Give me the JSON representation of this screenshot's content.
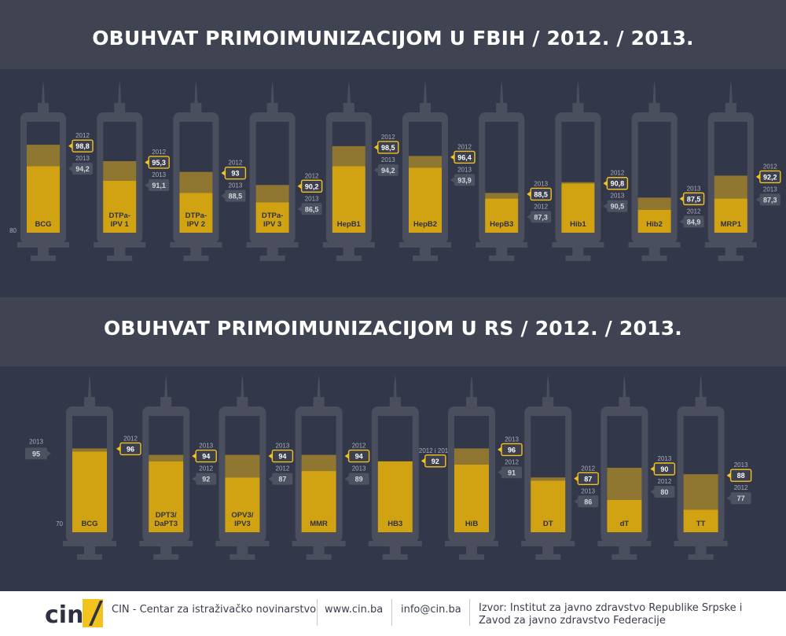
{
  "chart_data": [
    {
      "type": "bar",
      "title": "OBUHVAT PRIMOIMUNIZACIJOM U FBIH / 2012. / 2013.",
      "baseline": "80",
      "ylim": [
        80,
        100
      ],
      "categories": [
        "BCG",
        "DTPa-IPV 1",
        "DTPa-IPV 2",
        "DTPa-IPV 3",
        "HepB1",
        "HepB2",
        "HepB3",
        "Hib1",
        "Hib2",
        "MRP1"
      ],
      "label_lines": [
        [
          "BCG"
        ],
        [
          "DTPa-",
          "IPV 1"
        ],
        [
          "DTPa-",
          "IPV 2"
        ],
        [
          "DTPa-",
          "IPV 3"
        ],
        [
          "HepB1"
        ],
        [
          "HepB2"
        ],
        [
          "HepB3"
        ],
        [
          "Hib1"
        ],
        [
          "Hib2"
        ],
        [
          "MRP1"
        ]
      ],
      "series": [
        {
          "name": "2012",
          "values": [
            98.8,
            95.3,
            93,
            90.2,
            98.5,
            96.4,
            87.3,
            90.8,
            84.9,
            92.2
          ],
          "labels": [
            "98,8",
            "95,3",
            "93",
            "90,2",
            "98,5",
            "96,4",
            "87,3",
            "90,8",
            "84,9",
            "92,2"
          ]
        },
        {
          "name": "2013",
          "values": [
            94.2,
            91.1,
            88.5,
            86.5,
            94.2,
            93.9,
            88.5,
            90.5,
            87.5,
            87.3
          ],
          "labels": [
            "94,2",
            "91,1",
            "88,5",
            "86,5",
            "94,2",
            "93,9",
            "88,5",
            "90,5",
            "87,5",
            "87,3"
          ]
        }
      ]
    },
    {
      "type": "bar",
      "title": "OBUHVAT PRIMOIMUNIZACIJOM U RS / 2012. / 2013.",
      "baseline": "70",
      "ylim": [
        70,
        100
      ],
      "categories": [
        "BCG",
        "DPT3/DaPT3",
        "OPV3/IPV3",
        "MMR",
        "HB3",
        "HiB",
        "DT",
        "dT",
        "TT"
      ],
      "label_lines": [
        [
          "BCG"
        ],
        [
          "DPT3/",
          "DaPT3"
        ],
        [
          "OPV3/",
          "IPV3"
        ],
        [
          "MMR"
        ],
        [
          "HB3"
        ],
        [
          "HiB"
        ],
        [
          "DT"
        ],
        [
          "dT"
        ],
        [
          "TT"
        ]
      ],
      "series": [
        {
          "name": "2012",
          "values": [
            96,
            92,
            87,
            94,
            92,
            91,
            87,
            80,
            77
          ],
          "labels": [
            "96",
            "92",
            "87",
            "94",
            "92",
            "91",
            "87",
            "80",
            "77"
          ]
        },
        {
          "name": "2013",
          "values": [
            95,
            94,
            94,
            89,
            92,
            96,
            86,
            90,
            88
          ],
          "labels": [
            "95",
            "94",
            "94",
            "89",
            "92",
            "96",
            "86",
            "90",
            "88"
          ]
        }
      ],
      "combined_label": "2012 i 2013"
    }
  ],
  "footer": {
    "logo": "cin",
    "org": "CIN - Centar za istraživačko novinarstvo",
    "web": "www.cin.ba",
    "email": "info@cin.ba",
    "source_line1": "Izvor:  Institut za javno zdravstvo Republike Srpske i",
    "source_line2": "Zavod za javno zdravstvo Federacije"
  },
  "colors": {
    "background": "#3b3f4e",
    "panel": "#33374a",
    "syringe": "#4b4f5d",
    "fill_light": "#d1a312",
    "fill_dark": "#8f7731",
    "tag_yellow_border": "#f2c31f",
    "tag_grey": "#4d5261"
  }
}
